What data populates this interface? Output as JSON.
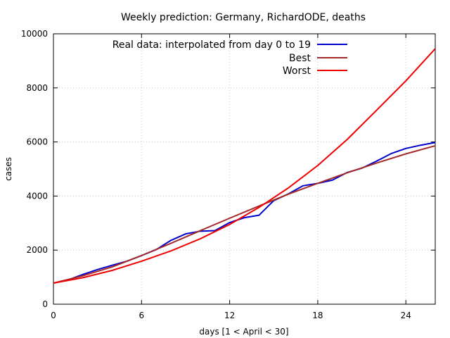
{
  "chart_data": {
    "type": "line",
    "title": "Weekly prediction: Germany, RichardODE, deaths",
    "xlabel": "days [1 < April < 30]",
    "ylabel": "cases",
    "xlim": [
      0,
      26
    ],
    "ylim": [
      0,
      10000
    ],
    "xticks": [
      0,
      6,
      12,
      18,
      24
    ],
    "yticks": [
      0,
      2000,
      4000,
      6000,
      8000,
      10000
    ],
    "x_tick_labels": [
      "0",
      "6",
      "12",
      "18",
      "24"
    ],
    "y_tick_labels": [
      "0",
      "2000",
      "4000",
      "6000",
      "8000",
      "10000"
    ],
    "grid": true,
    "legend_position": "top-right",
    "series": [
      {
        "name": "Real data: interpolated from day 0 to 19",
        "color": "#0000cc",
        "x": [
          0,
          1,
          2,
          3,
          4,
          5,
          6,
          7,
          8,
          9,
          10,
          11,
          12,
          13,
          14,
          15,
          16,
          17,
          18,
          19,
          20,
          21,
          22,
          23,
          24,
          25,
          26
        ],
        "y": [
          780,
          900,
          1100,
          1280,
          1440,
          1590,
          1800,
          2020,
          2360,
          2600,
          2700,
          2720,
          3020,
          3200,
          3290,
          3830,
          4080,
          4380,
          4470,
          4590,
          4870,
          5030,
          5290,
          5570,
          5760,
          5880,
          5980
        ]
      },
      {
        "name": "Best",
        "color": "#a52a2a",
        "x": [
          0,
          2,
          4,
          6,
          8,
          10,
          12,
          14,
          16,
          18,
          20,
          22,
          24,
          26
        ],
        "y": [
          780,
          1050,
          1380,
          1800,
          2250,
          2720,
          3180,
          3630,
          4070,
          4470,
          4860,
          5220,
          5560,
          5860
        ]
      },
      {
        "name": "Worst",
        "color": "#ee0000",
        "x": [
          0,
          2,
          4,
          6,
          8,
          10,
          12,
          14,
          16,
          18,
          20,
          22,
          24,
          26
        ],
        "y": [
          780,
          980,
          1250,
          1590,
          1970,
          2420,
          2950,
          3580,
          4300,
          5130,
          6090,
          7170,
          8260,
          9450
        ]
      }
    ]
  }
}
